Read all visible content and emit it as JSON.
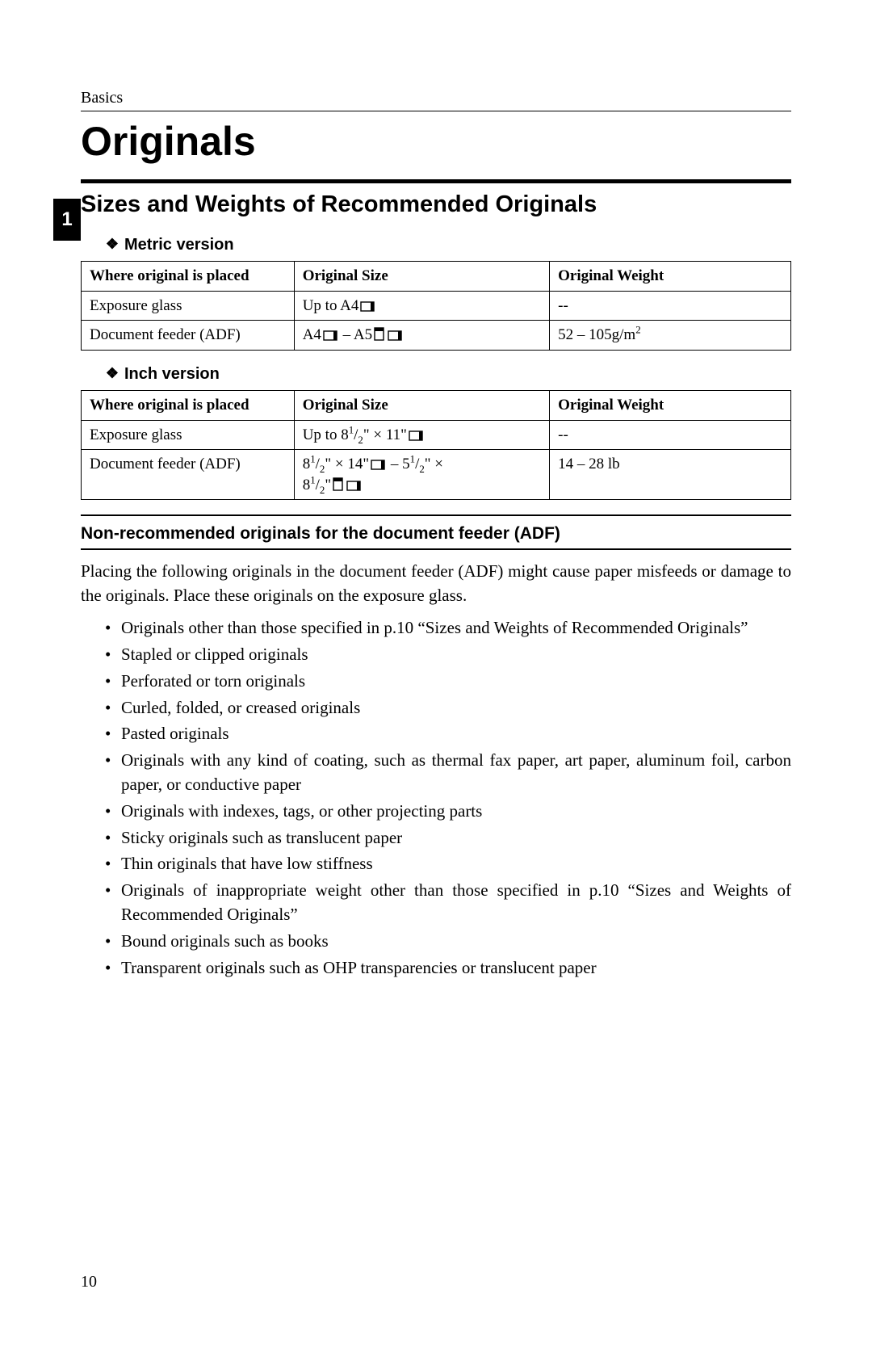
{
  "chapter_label": "Basics",
  "chapter_tab": "1",
  "title": "Originals",
  "section_heading": "Sizes and Weights of Recommended Originals",
  "metric": {
    "heading": "Metric version",
    "columns": [
      "Where original is placed",
      "Original Size",
      "Original Weight"
    ],
    "rows": [
      {
        "place": "Exposure glass",
        "size_prefix": "Up to A4",
        "size_suffix": "",
        "icons": [
          "landscape"
        ],
        "weight": "--"
      },
      {
        "place": "Document feeder (ADF)",
        "size_prefix": "A4",
        "size_mid": " – A5",
        "icons1": [
          "landscape"
        ],
        "icons2": [
          "portrait",
          "landscape"
        ],
        "weight_html": "52 – 105g/m<sup>2</sup>"
      }
    ]
  },
  "inch": {
    "heading": "Inch version",
    "columns": [
      "Where original is placed",
      "Original Size",
      "Original Weight"
    ],
    "rows": [
      {
        "place": "Exposure glass",
        "size_html": "Up to 8<sup>1</sup>/<sub>2</sub>\" × 11\"",
        "icons": [
          "landscape"
        ],
        "weight": "--"
      },
      {
        "place": "Document feeder (ADF)",
        "size_line1_html": "8<sup>1</sup>/<sub>2</sub>\" × 14\"",
        "icons_line1": [
          "landscape"
        ],
        "size_line1_tail": " – 5<sup>1</sup>/<sub>2</sub>\" ×",
        "size_line2_html": "8<sup>1</sup>/<sub>2</sub>\"",
        "icons_line2": [
          "portrait",
          "landscape"
        ],
        "weight": "14 – 28 lb"
      }
    ]
  },
  "subsection_heading": "Non-recommended originals for the document feeder (ADF)",
  "intro_paragraph": "Placing the following originals in the document feeder (ADF) might cause paper misfeeds or damage to the originals. Place these originals on the exposure glass.",
  "bullets": [
    "Originals other than those specified in p.10 “Sizes and Weights of Recommended Originals”",
    "Stapled or clipped originals",
    "Perforated or torn originals",
    "Curled, folded, or creased originals",
    "Pasted originals",
    "Originals with any kind of coating, such as thermal fax paper, art paper, aluminum foil, carbon paper, or conductive paper",
    "Originals with indexes, tags, or other projecting parts",
    "Sticky originals such as translucent paper",
    "Thin originals that have low stiffness",
    "Originals of inappropriate weight other than those specified in p.10 “Sizes and Weights of Recommended Originals”",
    "Bound originals such as books",
    "Transparent originals such as OHP transparencies or translucent paper"
  ],
  "page_number": "10",
  "colors": {
    "text": "#000000",
    "bg": "#ffffff"
  }
}
